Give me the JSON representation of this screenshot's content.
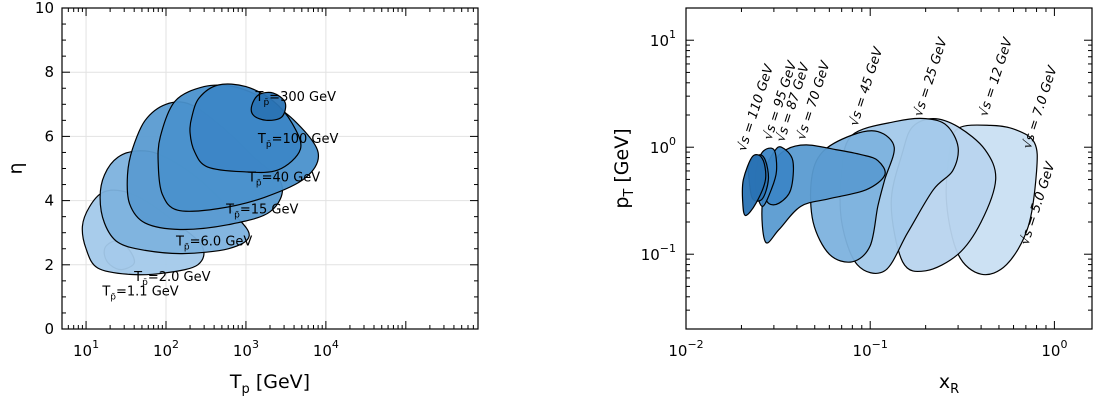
{
  "chart_data": [
    {
      "type": "area",
      "xlabel": "T",
      "xlabel_sub": "p",
      "xlabel_unit": " [GeV]",
      "ylabel": "η",
      "xscale": "log",
      "xlim": [
        5,
        800000
      ],
      "ylim": [
        0,
        10
      ],
      "xticks": [
        {
          "base": "10",
          "exp": "1"
        },
        {
          "base": "10",
          "exp": "2"
        },
        {
          "base": "10",
          "exp": "3"
        },
        {
          "base": "10",
          "exp": "4"
        }
      ],
      "yticks": [
        "0",
        "2",
        "4",
        "6",
        "8",
        "10"
      ],
      "grid": true,
      "series": [
        {
          "label": "T",
          "sub": "p̄",
          "value": "=1.1 GeV",
          "color": "#b3d3ee",
          "points": [
            [
              18,
              2.6
            ],
            [
              25,
              2.75
            ],
            [
              35,
              2.45
            ],
            [
              40,
              2.05
            ],
            [
              28,
              1.85
            ],
            [
              20,
              2.0
            ],
            [
              17,
              2.3
            ]
          ]
        },
        {
          "label": "T",
          "sub": "p̄",
          "value": "=2.0 GeV",
          "color": "#a3c9ea",
          "points": [
            [
              11,
              3.8
            ],
            [
              16,
              4.25
            ],
            [
              28,
              4.3
            ],
            [
              55,
              4.0
            ],
            [
              120,
              3.4
            ],
            [
              280,
              2.6
            ],
            [
              250,
              2.0
            ],
            [
              100,
              1.75
            ],
            [
              35,
              1.7
            ],
            [
              14,
              1.9
            ],
            [
              10,
              2.5
            ],
            [
              9,
              3.2
            ]
          ]
        },
        {
          "label": "T",
          "sub": "p̄",
          "value": "=6.0 GeV",
          "color": "#7db2de",
          "points": [
            [
              17,
              4.8
            ],
            [
              25,
              5.35
            ],
            [
              45,
              5.55
            ],
            [
              90,
              5.4
            ],
            [
              250,
              4.7
            ],
            [
              700,
              3.6
            ],
            [
              1100,
              2.9
            ],
            [
              600,
              2.5
            ],
            [
              160,
              2.35
            ],
            [
              55,
              2.45
            ],
            [
              25,
              2.7
            ],
            [
              17,
              3.3
            ],
            [
              15,
              4.1
            ]
          ]
        },
        {
          "label": "T",
          "sub": "p̄",
          "value": "=15 GeV",
          "color": "#5a9bd1",
          "points": [
            [
              38,
              5.6
            ],
            [
              55,
              6.5
            ],
            [
              100,
              7.0
            ],
            [
              200,
              7.0
            ],
            [
              500,
              6.3
            ],
            [
              1200,
              5.4
            ],
            [
              2800,
              4.5
            ],
            [
              2000,
              3.65
            ],
            [
              600,
              3.25
            ],
            [
              150,
              3.1
            ],
            [
              55,
              3.3
            ],
            [
              35,
              3.9
            ],
            [
              33,
              4.8
            ]
          ]
        },
        {
          "label": "T",
          "sub": "p̄",
          "value": "=40 GeV",
          "color": "#4a91cc",
          "points": [
            [
              85,
              6.0
            ],
            [
              130,
              7.1
            ],
            [
              300,
              7.55
            ],
            [
              700,
              7.55
            ],
            [
              1600,
              7.2
            ],
            [
              4000,
              6.5
            ],
            [
              8000,
              5.5
            ],
            [
              5500,
              4.7
            ],
            [
              1700,
              4.1
            ],
            [
              450,
              3.75
            ],
            [
              140,
              3.7
            ],
            [
              90,
              4.2
            ],
            [
              80,
              5.1
            ]
          ]
        },
        {
          "label": "T",
          "sub": "p̄",
          "value": "=100 GeV",
          "color": "#3c86c6",
          "points": [
            [
              210,
              6.6
            ],
            [
              260,
              7.2
            ],
            [
              450,
              7.6
            ],
            [
              1000,
              7.55
            ],
            [
              2200,
              7.1
            ],
            [
              3800,
              6.4
            ],
            [
              4800,
              5.6
            ],
            [
              2500,
              4.95
            ],
            [
              900,
              4.9
            ],
            [
              330,
              5.05
            ],
            [
              230,
              5.5
            ],
            [
              200,
              6.1
            ]
          ]
        },
        {
          "label": "T",
          "sub": "p̄",
          "value": "=300 GeV",
          "color": "#2a73b4",
          "points": [
            [
              1180,
              6.95
            ],
            [
              1450,
              7.3
            ],
            [
              2200,
              7.35
            ],
            [
              3100,
              7.05
            ],
            [
              2800,
              6.6
            ],
            [
              1800,
              6.5
            ],
            [
              1250,
              6.65
            ]
          ]
        }
      ],
      "annotation_pos": [
        [
          48,
          1.05
        ],
        [
          120,
          1.5
        ],
        [
          400,
          2.6
        ],
        [
          1600,
          3.6
        ],
        [
          3000,
          4.6
        ],
        [
          4500,
          5.8
        ],
        [
          4200,
          7.1
        ]
      ]
    },
    {
      "type": "area",
      "xlabel": "x",
      "xlabel_sub": "R",
      "ylabel": "p",
      "ylabel_sub": "T",
      "ylabel_unit": "   [GeV]",
      "xscale": "log",
      "yscale": "log",
      "xlim": [
        0.01,
        1.6
      ],
      "ylim": [
        0.02,
        20
      ],
      "xticks": [
        {
          "base": "10",
          "exp": "−2"
        },
        {
          "base": "10",
          "exp": "−1"
        },
        {
          "base": "10",
          "exp": "0"
        }
      ],
      "yticks": [
        {
          "base": "10",
          "exp": "−1"
        },
        {
          "base": "10",
          "exp": "0"
        },
        {
          "base": "10",
          "exp": "1"
        }
      ],
      "grid": false,
      "series": [
        {
          "label": "√s = 5.0 GeV",
          "color": "#c9dff2",
          "points": [
            [
              0.3,
              1.5
            ],
            [
              0.45,
              1.6
            ],
            [
              0.62,
              1.45
            ],
            [
              0.78,
              1.1
            ],
            [
              0.8,
              0.6
            ],
            [
              0.72,
              0.18
            ],
            [
              0.55,
              0.08
            ],
            [
              0.4,
              0.065
            ],
            [
              0.3,
              0.1
            ],
            [
              0.26,
              0.3
            ],
            [
              0.27,
              0.9
            ]
          ]
        },
        {
          "label": "√s = 7.0 GeV",
          "color": "#b8d4ee",
          "points": [
            [
              0.17,
              1.55
            ],
            [
              0.22,
              1.85
            ],
            [
              0.3,
              1.55
            ],
            [
              0.42,
              0.95
            ],
            [
              0.48,
              0.5
            ],
            [
              0.4,
              0.2
            ],
            [
              0.3,
              0.1
            ],
            [
              0.2,
              0.07
            ],
            [
              0.15,
              0.085
            ],
            [
              0.13,
              0.3
            ],
            [
              0.15,
              0.9
            ]
          ]
        },
        {
          "label": "√s = 12 GeV",
          "color": "#a3c9ea",
          "points": [
            [
              0.08,
              1.3
            ],
            [
              0.14,
              1.75
            ],
            [
              0.2,
              1.85
            ],
            [
              0.26,
              1.6
            ],
            [
              0.3,
              1.0
            ],
            [
              0.28,
              0.6
            ],
            [
              0.22,
              0.4
            ],
            [
              0.16,
              0.16
            ],
            [
              0.12,
              0.07
            ],
            [
              0.085,
              0.08
            ],
            [
              0.07,
              0.2
            ],
            [
              0.07,
              0.6
            ]
          ]
        },
        {
          "label": "√s = 25 GeV",
          "color": "#7db2de",
          "points": [
            [
              0.055,
              0.9
            ],
            [
              0.08,
              1.3
            ],
            [
              0.11,
              1.4
            ],
            [
              0.135,
              1.0
            ],
            [
              0.12,
              0.5
            ],
            [
              0.11,
              0.28
            ],
            [
              0.1,
              0.12
            ],
            [
              0.08,
              0.085
            ],
            [
              0.06,
              0.1
            ],
            [
              0.049,
              0.2
            ],
            [
              0.048,
              0.5
            ]
          ]
        },
        {
          "label": "√s = 45 GeV",
          "color": "#5a9bd1",
          "points": [
            [
              0.03,
              0.7
            ],
            [
              0.035,
              0.95
            ],
            [
              0.045,
              1.05
            ],
            [
              0.065,
              0.95
            ],
            [
              0.09,
              0.85
            ],
            [
              0.11,
              0.75
            ],
            [
              0.12,
              0.55
            ],
            [
              0.095,
              0.4
            ],
            [
              0.06,
              0.33
            ],
            [
              0.042,
              0.28
            ],
            [
              0.032,
              0.17
            ],
            [
              0.027,
              0.13
            ],
            [
              0.026,
              0.3
            ]
          ]
        },
        {
          "label": "√s = 70 GeV",
          "color": "#3c86c6",
          "points": [
            [
              0.026,
              0.55
            ],
            [
              0.03,
              0.9
            ],
            [
              0.033,
              1.0
            ],
            [
              0.038,
              0.75
            ],
            [
              0.037,
              0.4
            ],
            [
              0.032,
              0.3
            ],
            [
              0.028,
              0.3
            ],
            [
              0.026,
              0.4
            ]
          ]
        },
        {
          "label": "√s = 87 GeV",
          "color": "#3c86c6",
          "points": [
            [
              0.024,
              0.6
            ],
            [
              0.026,
              0.9
            ],
            [
              0.03,
              0.95
            ],
            [
              0.031,
              0.6
            ],
            [
              0.029,
              0.4
            ],
            [
              0.026,
              0.28
            ],
            [
              0.024,
              0.4
            ]
          ]
        },
        {
          "label": "√s = 95 GeV",
          "color": "#2a73b4",
          "points": [
            [
              0.022,
              0.7
            ],
            [
              0.025,
              0.85
            ],
            [
              0.027,
              0.75
            ],
            [
              0.028,
              0.5
            ],
            [
              0.026,
              0.33
            ],
            [
              0.023,
              0.33
            ],
            [
              0.022,
              0.5
            ]
          ]
        },
        {
          "label": "√s = 110 GeV",
          "color": "#2a73b4",
          "points": [
            [
              0.0205,
              0.5
            ],
            [
              0.023,
              0.82
            ],
            [
              0.026,
              0.78
            ],
            [
              0.027,
              0.5
            ],
            [
              0.024,
              0.3
            ],
            [
              0.021,
              0.23
            ],
            [
              0.0203,
              0.32
            ]
          ]
        }
      ],
      "label_pos": [
        [
          0.72,
          0.12
        ],
        [
          0.74,
          0.95
        ],
        [
          0.43,
          1.9
        ],
        [
          0.19,
          1.9
        ],
        [
          0.085,
          1.55
        ],
        [
          0.044,
          1.15
        ],
        [
          0.034,
          1.1
        ],
        [
          0.029,
          1.15
        ],
        [
          0.021,
          0.9
        ]
      ]
    }
  ]
}
